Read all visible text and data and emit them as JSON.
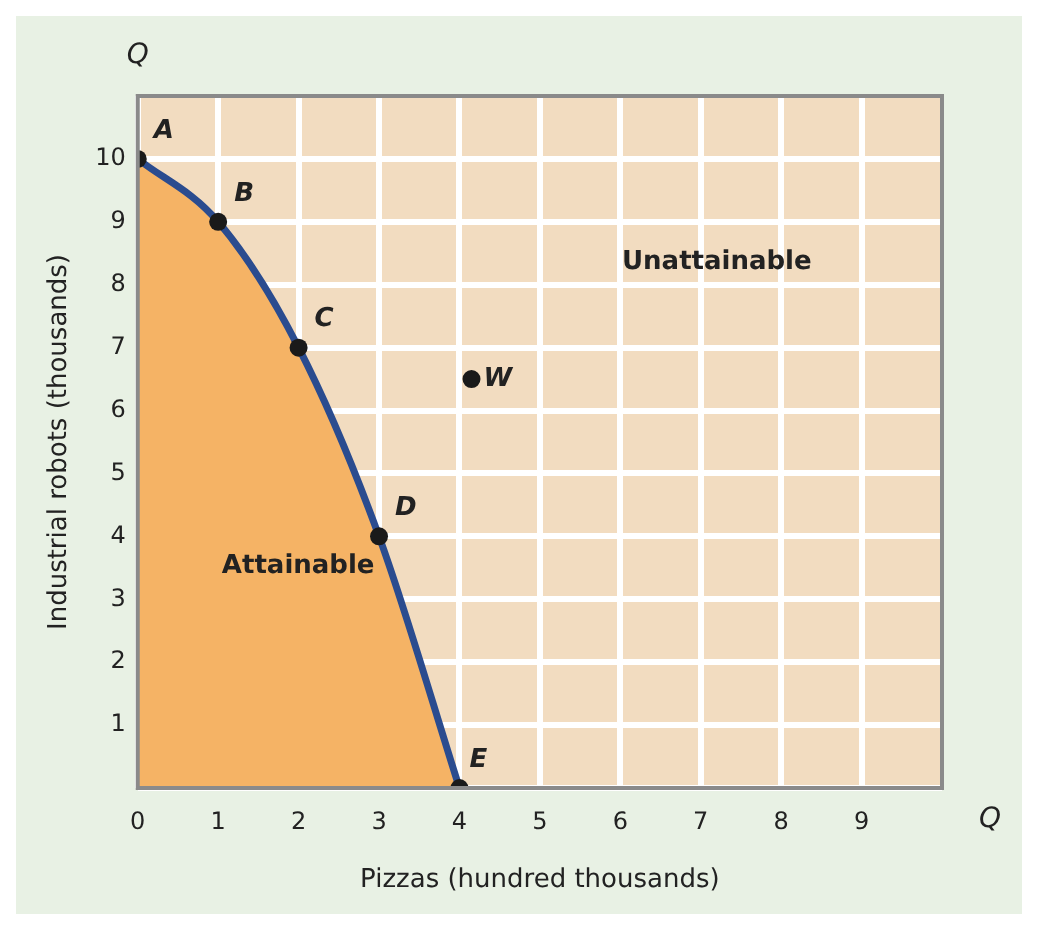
{
  "chart_data": {
    "type": "area",
    "xlabel": "Pizzas (hundred thousands)",
    "ylabel": "Industrial robots (thousands)",
    "series": [
      {
        "color": "#f5b365",
        "x": [
          0,
          1,
          2,
          3,
          4
        ],
        "values": [
          10,
          9,
          7,
          4,
          0
        ],
        "marker": "circle"
      },
      {
        "type": "scatter",
        "color": "#1a1a1a",
        "x": [
          4.15
        ],
        "values": [
          6.5
        ],
        "marker": "circle"
      }
    ],
    "xlim": [
      0,
      10
    ],
    "ylim": [
      0,
      11
    ],
    "xticks": [
      0,
      1,
      2,
      3,
      4,
      5,
      6,
      7,
      8,
      9
    ],
    "yticks": [
      {
        "value": 0,
        "label": null
      },
      1,
      2,
      3,
      4,
      5,
      6,
      7,
      8,
      9,
      10
    ],
    "grid": true,
    "legend": false,
    "annotations": [
      "Q",
      "Q",
      "Attainable",
      "Unattainable",
      {
        "text": "A",
        "x": 0,
        "y": 10
      },
      {
        "text": "B",
        "x": 1,
        "y": 9
      },
      {
        "text": "C",
        "x": 2,
        "y": 7
      },
      {
        "text": "D",
        "x": 3,
        "y": 4
      },
      {
        "text": "E",
        "x": 4,
        "y": 0
      },
      {
        "text": "W",
        "x": 4.15,
        "y": 6.5
      }
    ]
  }
}
